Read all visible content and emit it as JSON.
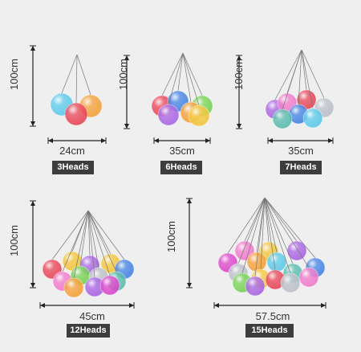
{
  "products": [
    {
      "height": "100cm",
      "width": "24cm",
      "heads": "3Heads"
    },
    {
      "height": "100cm",
      "width": "35cm",
      "heads": "6Heads"
    },
    {
      "height": "100cm",
      "width": "35cm",
      "heads": "7Heads"
    },
    {
      "height": "100cm",
      "width": "45cm",
      "heads": "12Heads"
    },
    {
      "height": "100cm",
      "width": "57.5cm",
      "heads": "15Heads"
    }
  ]
}
